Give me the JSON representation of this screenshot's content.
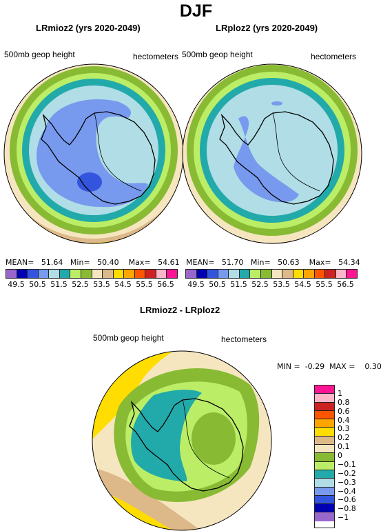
{
  "title": "DJF",
  "panels": [
    {
      "title": "LRmioz2 (yrs 2020-2049)",
      "left_label": "500mb geop height",
      "right_label": "hectometers",
      "mean_label": "MEAN=",
      "mean": "51.64",
      "min_label": "Min=",
      "min": "50.40",
      "max_label": "Max=",
      "max": "54.61"
    },
    {
      "title": "LRploz2 (yrs 2020-2049)",
      "left_label": "500mb geop height",
      "right_label": "hectometers",
      "mean_label": "MEAN=",
      "mean": "51.70",
      "min_label": "Min=",
      "min": "50.63",
      "max_label": "Max=",
      "max": "54.34"
    }
  ],
  "legend_ticks": [
    "49.5",
    "50.5",
    "51.5",
    "52.5",
    "53.5",
    "54.5",
    "55.5",
    "56.5"
  ],
  "legend_colors": [
    "#9966cc",
    "#0000b3",
    "#3355dd",
    "#7799ee",
    "#b0dde6",
    "#22aaaa",
    "#bbee66",
    "#88bb33",
    "#f5e6c0",
    "#ddb888",
    "#ffdd00",
    "#ffa500",
    "#ff5500",
    "#cc2222",
    "#ffb6c8",
    "#ff1493"
  ],
  "diff": {
    "title": "LRmioz2 - LRploz2",
    "left_label": "500mb geop height",
    "right_label": "hectometers",
    "min_label": "MIN =",
    "min": "-0.29",
    "max_label": "MAX =",
    "max": "0.30",
    "legend_labels": [
      "1",
      "0.8",
      "0.6",
      "0.4",
      "0.3",
      "0.2",
      "0.1",
      "0",
      "−0.1",
      "−0.2",
      "−0.3",
      "−0.4",
      "−0.6",
      "−0.8",
      "−1"
    ],
    "legend_colors": [
      "#ff1493",
      "#ffb6c8",
      "#cc2222",
      "#ff5500",
      "#ffa500",
      "#ffdd00",
      "#ddb888",
      "#f5e6c0",
      "#88bb33",
      "#bbee66",
      "#22aaaa",
      "#b0dde6",
      "#7799ee",
      "#3355dd",
      "#0000b3",
      "#9966cc"
    ]
  }
}
